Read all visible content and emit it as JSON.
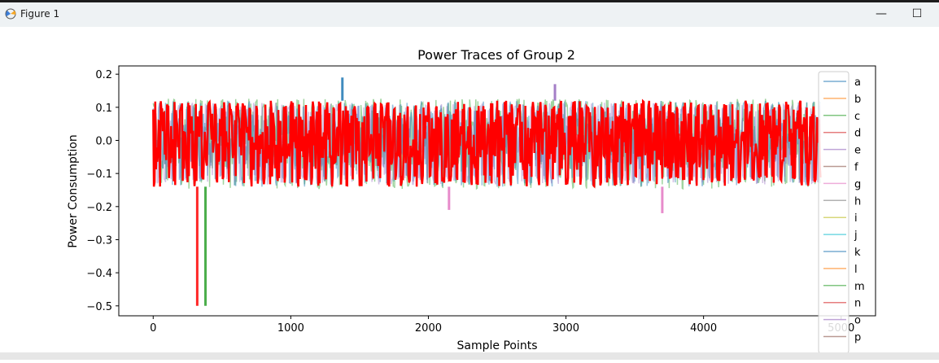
{
  "window": {
    "title": "Figure 1",
    "minimize_glyph": "—",
    "maximize_glyph": "☐",
    "icon": "matplotlib-figure-icon"
  },
  "chart_data": {
    "type": "line",
    "title": "Power Traces of Group 2",
    "xlabel": "Sample Points",
    "ylabel": "Power Consumption",
    "xlim": [
      -250,
      5250
    ],
    "ylim": [
      -0.53,
      0.225
    ],
    "xticks": [
      0,
      1000,
      2000,
      3000,
      4000,
      5000
    ],
    "yticks": [
      0.2,
      0.1,
      0.0,
      -0.1,
      -0.2,
      -0.3,
      -0.4,
      -0.5
    ],
    "ytick_labels": [
      "0.2",
      "0.1",
      "0.0",
      "−0.1",
      "−0.2",
      "−0.3",
      "−0.4",
      "−0.5"
    ],
    "grid": false,
    "legend_placement": "right (clipped)",
    "legend": [
      {
        "name": "a",
        "color": "#1f77b4"
      },
      {
        "name": "b",
        "color": "#ff7f0e"
      },
      {
        "name": "c",
        "color": "#2ca02c"
      },
      {
        "name": "d",
        "color": "#d62728"
      },
      {
        "name": "e",
        "color": "#9467bd"
      },
      {
        "name": "f",
        "color": "#8c564b"
      },
      {
        "name": "g",
        "color": "#e377c2"
      },
      {
        "name": "h",
        "color": "#7f7f7f"
      },
      {
        "name": "i",
        "color": "#bcbd22"
      },
      {
        "name": "j",
        "color": "#17becf"
      },
      {
        "name": "k",
        "color": "#1f77b4"
      },
      {
        "name": "l",
        "color": "#ff7f0e"
      },
      {
        "name": "m",
        "color": "#2ca02c"
      },
      {
        "name": "n",
        "color": "#d62728"
      },
      {
        "name": "o",
        "color": "#9467bd"
      },
      {
        "name": "p",
        "color": "#8c564b"
      }
    ],
    "trace": {
      "x_range": [
        0,
        4850
      ],
      "typical_range": [
        -0.14,
        0.12
      ],
      "dominant_color": "#ff0000",
      "cycle_period": 50,
      "spikes": [
        {
          "x": 320,
          "y": -0.5,
          "color": "#ff0000"
        },
        {
          "x": 380,
          "y": -0.5,
          "color": "#2ca02c"
        },
        {
          "x": 1375,
          "y": 0.19,
          "color": "#1f77b4"
        },
        {
          "x": 2150,
          "y": -0.21,
          "color": "#e377c2"
        },
        {
          "x": 2920,
          "y": 0.17,
          "color": "#9467bd"
        },
        {
          "x": 3700,
          "y": -0.22,
          "color": "#e377c2"
        }
      ]
    }
  }
}
